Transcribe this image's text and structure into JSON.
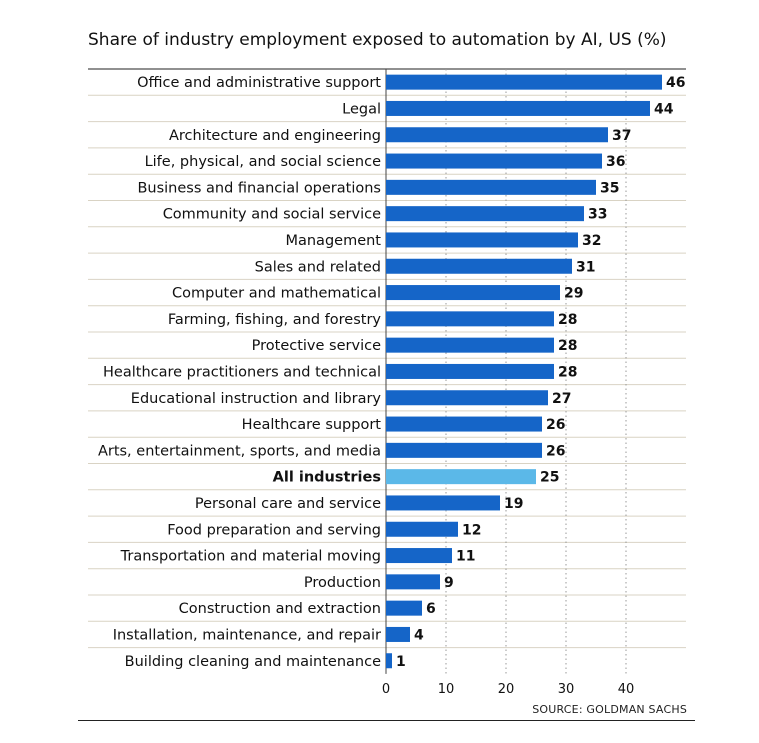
{
  "chart_data": {
    "type": "bar",
    "orientation": "horizontal",
    "title": "Share of industry employment exposed to automation by AI, US (%)",
    "source": "SOURCE: GOLDMAN SACHS",
    "categories": [
      "Office and administrative support",
      "Legal",
      "Architecture and engineering",
      "Life, physical, and social science",
      "Business and financial operations",
      "Community and social service",
      "Management",
      "Sales and related",
      "Computer and mathematical",
      "Farming, fishing, and forestry",
      "Protective service",
      "Healthcare practitioners and technical",
      "Educational instruction and library",
      "Healthcare support",
      "Arts, entertainment, sports, and media",
      "All industries",
      "Personal care and service",
      "Food preparation and serving",
      "Transportation and material moving",
      "Production",
      "Construction and extraction",
      "Installation, maintenance, and repair",
      "Building cleaning and maintenance"
    ],
    "values": [
      46,
      44,
      37,
      36,
      35,
      33,
      32,
      31,
      29,
      28,
      28,
      28,
      27,
      26,
      26,
      25,
      19,
      12,
      11,
      9,
      6,
      4,
      1
    ],
    "highlight": "All industries",
    "xlim": [
      0,
      46
    ],
    "xticks": [
      0,
      10,
      20,
      30,
      40
    ],
    "grid": true,
    "colors": {
      "bar": "#1565C8",
      "highlight": "#5BB8E8",
      "grid": "#999999",
      "row_rule": "#d9d3c4"
    }
  }
}
